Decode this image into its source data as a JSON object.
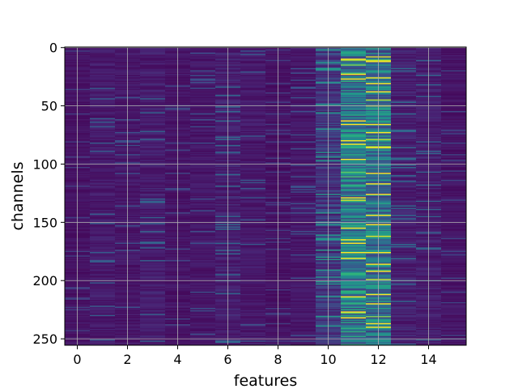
{
  "chart_data": {
    "type": "heatmap",
    "title": "",
    "xlabel": "features",
    "ylabel": "channels",
    "x_categories": [
      0,
      1,
      2,
      3,
      4,
      5,
      6,
      7,
      8,
      9,
      10,
      11,
      12,
      13,
      14,
      15
    ],
    "y_range": [
      0,
      255
    ],
    "x_ticks": [
      0,
      2,
      4,
      6,
      8,
      10,
      12,
      14
    ],
    "y_ticks": [
      0,
      50,
      100,
      150,
      200,
      250
    ],
    "xlim": [
      -0.5,
      15.5
    ],
    "ylim": [
      255.5,
      -0.5
    ],
    "colormap": "viridis",
    "grid": true,
    "legend": "none",
    "column_intensity": [
      0.08,
      0.12,
      0.1,
      0.13,
      0.09,
      0.1,
      0.14,
      0.11,
      0.08,
      0.1,
      0.22,
      0.55,
      0.5,
      0.14,
      0.13,
      0.09
    ],
    "highlighted_cells": [
      {
        "feature": 12,
        "channel": 8,
        "value": 0.95
      },
      {
        "feature": 12,
        "channel": 11,
        "value": 0.9
      },
      {
        "feature": 11,
        "channel": 11,
        "value": 0.85
      },
      {
        "feature": 11,
        "channel": 15,
        "value": 0.8
      },
      {
        "feature": 11,
        "channel": 22,
        "value": 0.7
      },
      {
        "feature": 12,
        "channel": 45,
        "value": 0.9
      },
      {
        "feature": 12,
        "channel": 50,
        "value": 0.95
      },
      {
        "feature": 12,
        "channel": 79,
        "value": 0.9
      },
      {
        "feature": 12,
        "channel": 85,
        "value": 0.85
      },
      {
        "feature": 11,
        "channel": 107,
        "value": 0.75
      },
      {
        "feature": 11,
        "channel": 111,
        "value": 0.7
      },
      {
        "feature": 11,
        "channel": 131,
        "value": 0.95
      },
      {
        "feature": 12,
        "channel": 162,
        "value": 0.95
      },
      {
        "feature": 12,
        "channel": 199,
        "value": 0.9
      },
      {
        "feature": 11,
        "channel": 228,
        "value": 0.75
      },
      {
        "feature": 12,
        "channel": 231,
        "value": 0.8
      }
    ]
  },
  "colors": {
    "background": "#ffffff",
    "grid": "#b0b0b0",
    "axes": "#000000",
    "text": "#000000"
  }
}
